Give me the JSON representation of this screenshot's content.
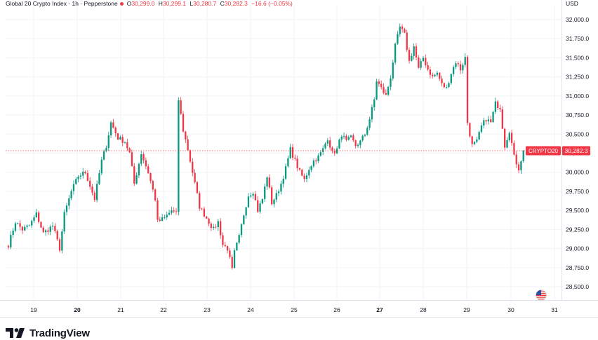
{
  "legend": {
    "title": "Global 20 Crypto Index · 1h · Pepperstone",
    "o_label": "O",
    "o_value": "30,299.0",
    "h_label": "H",
    "h_value": "30,299.1",
    "l_label": "L",
    "l_value": "30,280.7",
    "c_label": "C",
    "c_value": "30,282.3",
    "change": "−16.6 (−0.05%)"
  },
  "axis": {
    "currency": "USD"
  },
  "price_label": {
    "symbol": "CRYPTO20",
    "value": "30,282.3",
    "color": "#f23645"
  },
  "branding": {
    "name": "TradingView"
  },
  "colors": {
    "up": "#089981",
    "down": "#f23645",
    "grid": "#f0f3fa",
    "text": "#131722"
  },
  "chart_data": {
    "type": "candlestick",
    "currency": "USD",
    "ylim": [
      28350,
      32250
    ],
    "yticks": [
      "28,500.0",
      "28,750.0",
      "29,000.0",
      "29,250.0",
      "29,500.0",
      "29,750.0",
      "30,000.0",
      "30,250.0",
      "30,500.0",
      "30,750.0",
      "31,000.0",
      "31,250.0",
      "31,500.0",
      "31,750.0",
      "32,000.0"
    ],
    "xlabels": [
      "19",
      "20",
      "21",
      "22",
      "23",
      "24",
      "25",
      "26",
      "27",
      "28",
      "29",
      "30",
      "31"
    ],
    "xlabels_bold": [
      "20",
      "27"
    ],
    "last_price": 30282.3,
    "grid": true,
    "path": [
      [
        0,
        29050
      ],
      [
        3,
        29350
      ],
      [
        6,
        29250
      ],
      [
        9,
        29300
      ],
      [
        12,
        29450
      ],
      [
        15,
        29200
      ],
      [
        19,
        29300
      ],
      [
        22,
        29000
      ],
      [
        24,
        29450
      ],
      [
        27,
        29750
      ],
      [
        30,
        29950
      ],
      [
        33,
        30000
      ],
      [
        37,
        29650
      ],
      [
        40,
        30150
      ],
      [
        42,
        30350
      ],
      [
        44,
        30650
      ],
      [
        47,
        30450
      ],
      [
        50,
        30400
      ],
      [
        52,
        30250
      ],
      [
        54,
        29850
      ],
      [
        57,
        30250
      ],
      [
        60,
        30000
      ],
      [
        63,
        29650
      ],
      [
        64,
        29350
      ],
      [
        67,
        29400
      ],
      [
        70,
        29500
      ],
      [
        72,
        29450
      ],
      [
        73,
        30950
      ],
      [
        75,
        30550
      ],
      [
        77,
        30300
      ],
      [
        80,
        29850
      ],
      [
        82,
        29550
      ],
      [
        85,
        29400
      ],
      [
        88,
        29250
      ],
      [
        90,
        29350
      ],
      [
        92,
        29050
      ],
      [
        94,
        29000
      ],
      [
        96,
        28720
      ],
      [
        97,
        28950
      ],
      [
        99,
        29150
      ],
      [
        101,
        29450
      ],
      [
        103,
        29700
      ],
      [
        105,
        29750
      ],
      [
        107,
        29500
      ],
      [
        109,
        29650
      ],
      [
        111,
        29950
      ],
      [
        113,
        29600
      ],
      [
        115,
        29700
      ],
      [
        117,
        29850
      ],
      [
        119,
        30050
      ],
      [
        121,
        30300
      ],
      [
        123,
        30150
      ],
      [
        125,
        30000
      ],
      [
        127,
        29900
      ],
      [
        129,
        30050
      ],
      [
        131,
        30150
      ],
      [
        133,
        30200
      ],
      [
        135,
        30300
      ],
      [
        137,
        30450
      ],
      [
        139,
        30250
      ],
      [
        141,
        30300
      ],
      [
        143,
        30500
      ],
      [
        145,
        30400
      ],
      [
        147,
        30450
      ],
      [
        149,
        30350
      ],
      [
        151,
        30400
      ],
      [
        153,
        30500
      ],
      [
        155,
        30700
      ],
      [
        157,
        30950
      ],
      [
        158,
        31200
      ],
      [
        160,
        31100
      ],
      [
        162,
        31000
      ],
      [
        164,
        31250
      ],
      [
        166,
        31650
      ],
      [
        168,
        31900
      ],
      [
        170,
        31800
      ],
      [
        172,
        31450
      ],
      [
        174,
        31650
      ],
      [
        176,
        31350
      ],
      [
        178,
        31500
      ],
      [
        180,
        31350
      ],
      [
        182,
        31250
      ],
      [
        184,
        31300
      ],
      [
        186,
        31150
      ],
      [
        188,
        31100
      ],
      [
        190,
        31300
      ],
      [
        192,
        31450
      ],
      [
        194,
        31350
      ],
      [
        196,
        31500
      ],
      [
        197,
        30650
      ],
      [
        199,
        30350
      ],
      [
        201,
        30400
      ],
      [
        203,
        30600
      ],
      [
        205,
        30700
      ],
      [
        207,
        30650
      ],
      [
        209,
        30900
      ],
      [
        211,
        30850
      ],
      [
        213,
        30350
      ],
      [
        215,
        30550
      ],
      [
        217,
        30200
      ],
      [
        219,
        30050
      ],
      [
        221,
        30282
      ]
    ]
  }
}
